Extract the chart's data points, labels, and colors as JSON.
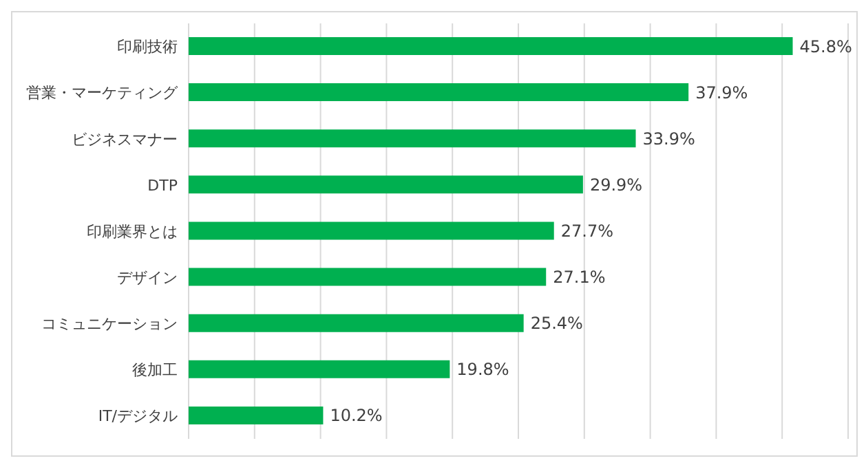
{
  "chart_data": {
    "type": "bar",
    "orientation": "horizontal",
    "categories": [
      "印刷技術",
      "営業・マーケティング",
      "ビジネスマナー",
      "DTP",
      "印刷業界とは",
      "デザイン",
      "コミュニケーション",
      "後加工",
      "IT/デジタル"
    ],
    "values": [
      45.8,
      37.9,
      33.9,
      29.9,
      27.7,
      27.1,
      25.4,
      19.8,
      10.2
    ],
    "value_labels": [
      "45.8%",
      "37.9%",
      "33.9%",
      "29.9%",
      "27.7%",
      "27.1%",
      "25.4%",
      "19.8%",
      "10.2%"
    ],
    "color": "#00b050",
    "grid": "x",
    "tick_labels": "y"
  }
}
